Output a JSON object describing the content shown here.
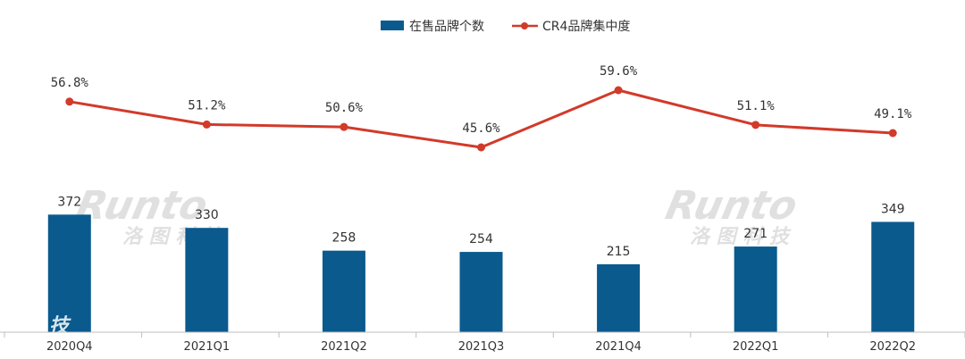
{
  "chart_data": {
    "type": "bar",
    "categories": [
      "2020Q4",
      "2021Q1",
      "2021Q2",
      "2021Q3",
      "2021Q4",
      "2022Q1",
      "2022Q2"
    ],
    "series": [
      {
        "name": "在售品牌个数",
        "type": "bar",
        "color": "#0a5a8e",
        "values": [
          372,
          330,
          258,
          254,
          215,
          271,
          349
        ],
        "labels": [
          "372",
          "330",
          "258",
          "254",
          "215",
          "271",
          "349"
        ]
      },
      {
        "name": "CR4品牌集中度",
        "type": "line",
        "color": "#d23a2a",
        "values": [
          56.8,
          51.2,
          50.6,
          45.6,
          59.6,
          51.1,
          49.1
        ],
        "labels": [
          "56.8%",
          "51.2%",
          "50.6%",
          "45.6%",
          "59.6%",
          "51.1%",
          "49.1%"
        ]
      }
    ],
    "legend": "top-center",
    "grid": false
  },
  "watermark": {
    "brand": "Runto",
    "cn": "洛 图 科 技",
    "fragment": "技"
  }
}
